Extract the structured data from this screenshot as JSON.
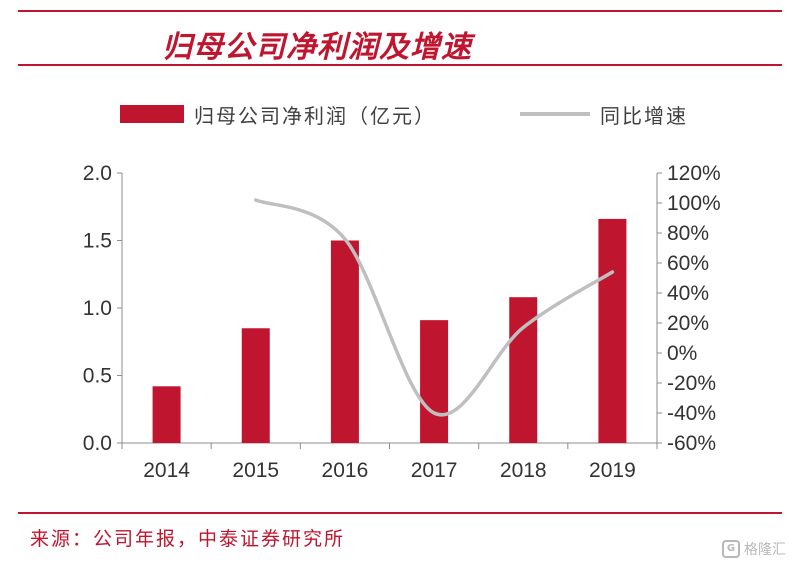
{
  "header": {
    "title": "归母公司净利润及增速"
  },
  "legend": {
    "bar_label": "归母公司净利润（亿元）",
    "line_label": "同比增速"
  },
  "chart_data": {
    "type": "bar",
    "categories": [
      "2014",
      "2015",
      "2016",
      "2017",
      "2018",
      "2019"
    ],
    "series": [
      {
        "name": "归母公司净利润（亿元）",
        "type": "bar",
        "axis": "left",
        "color": "#c0152f",
        "values": [
          0.42,
          0.85,
          1.5,
          0.91,
          1.08,
          1.66
        ]
      },
      {
        "name": "同比增速",
        "type": "line",
        "axis": "right",
        "color": "#bfbfbf",
        "smooth": true,
        "values": [
          null,
          102,
          76,
          -40,
          17,
          54
        ]
      }
    ],
    "y_left": {
      "lim": [
        0,
        2.0
      ],
      "ticks": [
        "0.0",
        "0.5",
        "1.0",
        "1.5",
        "2.0"
      ]
    },
    "y_right": {
      "lim": [
        -60,
        120
      ],
      "ticks": [
        "-60%",
        "-40%",
        "-20%",
        "0%",
        "20%",
        "40%",
        "60%",
        "80%",
        "100%",
        "120%"
      ]
    },
    "grid": false,
    "legend_position": "top"
  },
  "footer": {
    "source": "来源：公司年报，中泰证券研究所",
    "watermark": "格隆汇",
    "watermark_logo": "G"
  }
}
